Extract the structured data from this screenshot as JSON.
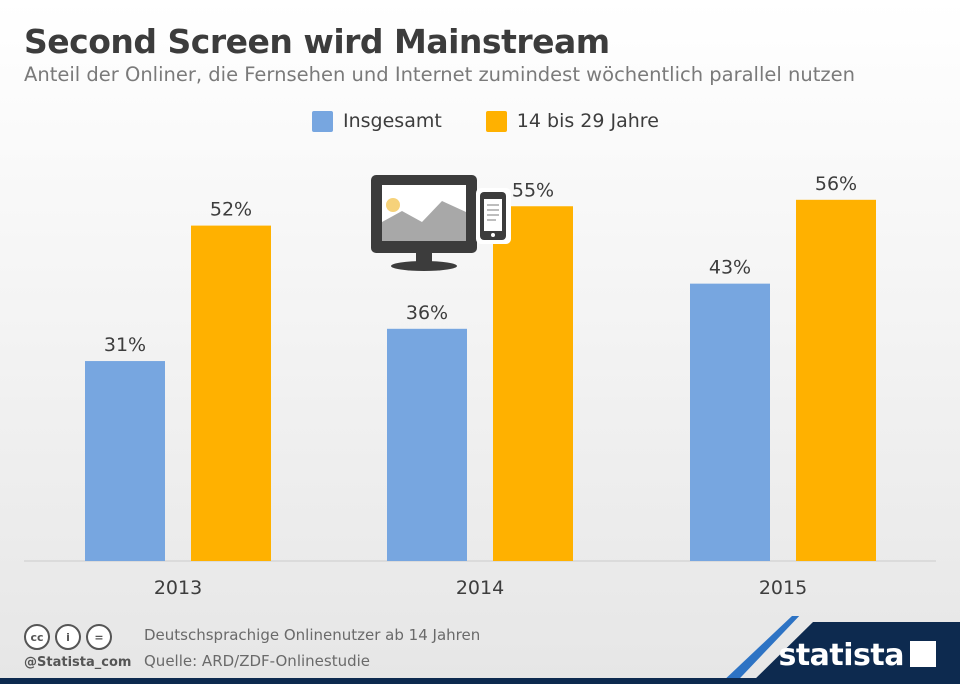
{
  "header": {
    "title": "Second Screen wird Mainstream",
    "subtitle": "Anteil der Onliner, die Fernsehen und Internet zumindest wöchentlich parallel nutzen"
  },
  "colors": {
    "insgesamt": "#77a6e0",
    "young": "#ffb100",
    "baseline": "#cccccc",
    "label": "#3d3d3d",
    "brand_dark": "#0d2a4f",
    "brand_blue": "#2d73c4"
  },
  "chart_data": {
    "type": "bar",
    "title": "Second Screen wird Mainstream",
    "subtitle": "Anteil der Onliner, die Fernsehen und Internet zumindest wöchentlich parallel nutzen",
    "categories": [
      "2013",
      "2014",
      "2015"
    ],
    "series": [
      {
        "name": "Insgesamt",
        "values": [
          31,
          36,
          43
        ],
        "labels": [
          "31%",
          "36%",
          "43%"
        ]
      },
      {
        "name": "14 bis 29 Jahre",
        "values": [
          52,
          55,
          56
        ],
        "labels": [
          "52%",
          "55%",
          "56%"
        ]
      }
    ],
    "ylim": [
      0,
      70
    ],
    "grid": false,
    "legend": "top-center"
  },
  "illustration": {
    "icon": "tv-and-smartphone-icon"
  },
  "footer": {
    "population": "Deutschsprachige Onlinenutzer ab 14 Jahren",
    "source": "Quelle: ARD/ZDF-Onlinestudie",
    "handle": "@Statista_com",
    "cc_icons": [
      "cc",
      "i",
      "="
    ],
    "brand": "statista"
  }
}
